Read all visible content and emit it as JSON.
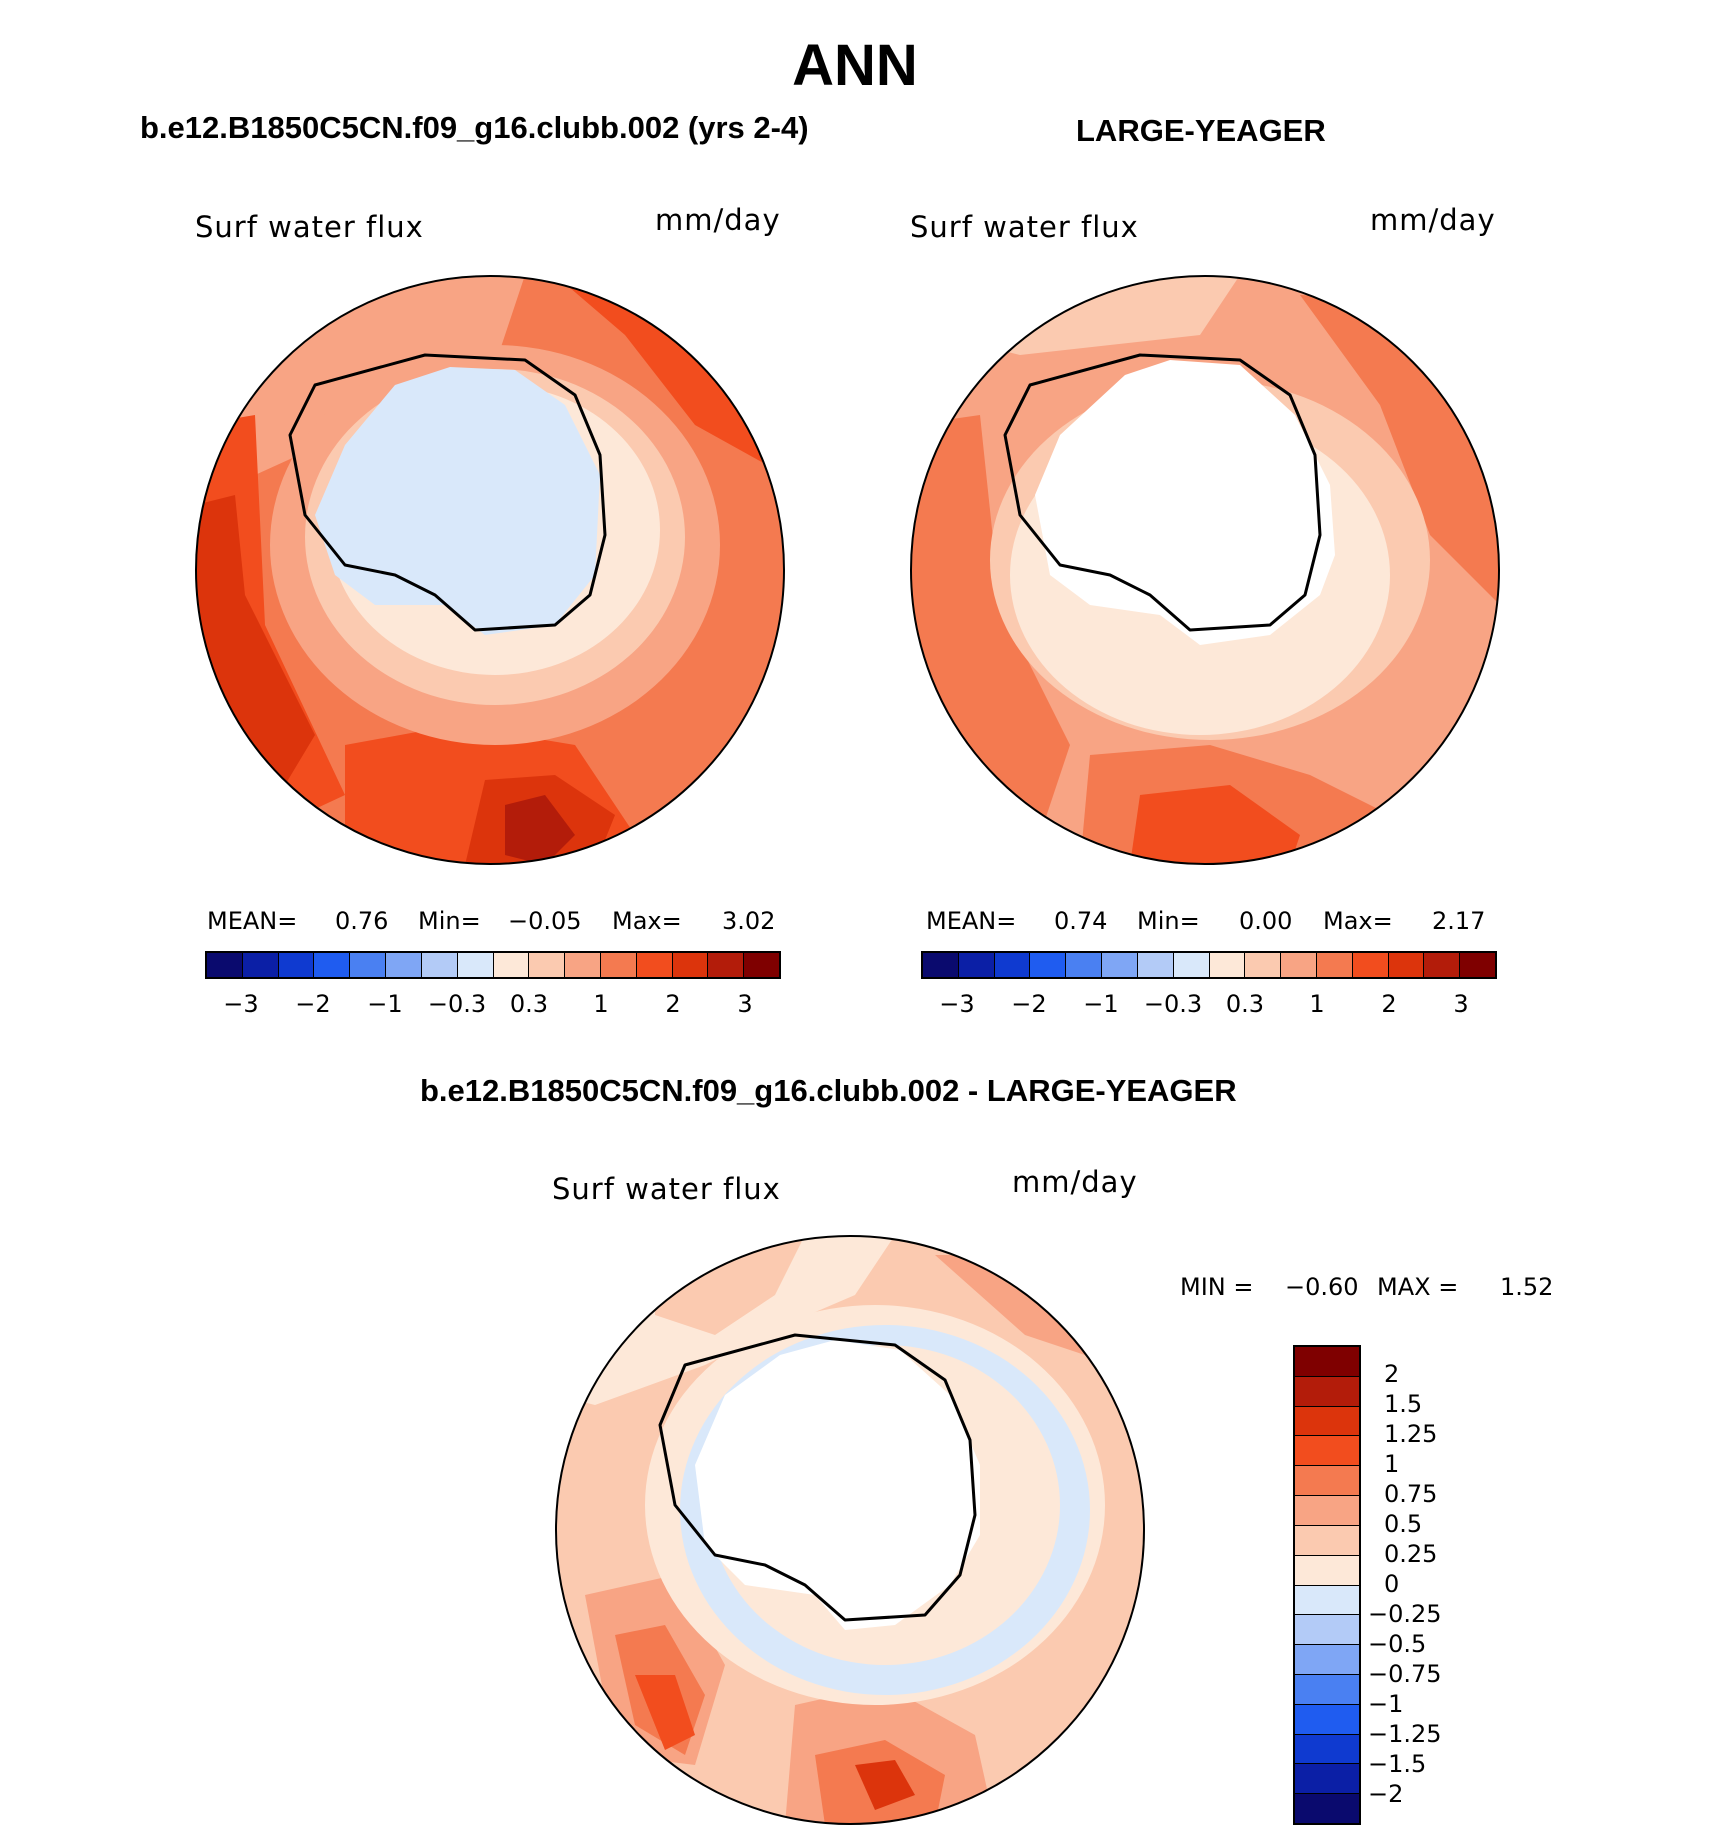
{
  "title": "ANN",
  "panels": [
    {
      "title": "b.e12.B1850C5CN.f09_g16.clubb.002 (yrs 2-4)",
      "variable": "Surf water flux",
      "units": "mm/day",
      "stats": {
        "mean_label": "MEAN=",
        "mean": "0.76",
        "min_label": "Min=",
        "min": "−0.05",
        "max_label": "Max=",
        "max": "3.02"
      }
    },
    {
      "title": "LARGE-YEAGER",
      "variable": "Surf water flux",
      "units": "mm/day",
      "stats": {
        "mean_label": "MEAN=",
        "mean": "0.74",
        "min_label": "Min=",
        "min": "0.00",
        "max_label": "Max=",
        "max": "2.17"
      }
    },
    {
      "title": "b.e12.B1850C5CN.f09_g16.clubb.002 - LARGE-YEAGER",
      "variable": "Surf water flux",
      "units": "mm/day",
      "stats": {
        "min_label": "MIN =",
        "min": "−0.60",
        "max_label": "MAX =",
        "max": "1.52"
      }
    }
  ],
  "colorbars": {
    "absolute": {
      "colors": [
        "#0a0a6e",
        "#0b1fa6",
        "#0f3ad0",
        "#1f5cf0",
        "#4a80f2",
        "#7fa6f5",
        "#b3cbf7",
        "#d9e8fa",
        "#fde8d8",
        "#fbcab0",
        "#f8a484",
        "#f47a50",
        "#f24d1e",
        "#dc340c",
        "#b31c0a",
        "#7f0000"
      ],
      "labels": [
        "−3",
        "−2",
        "−1",
        "−0.3",
        "0.3",
        "1",
        "2",
        "3"
      ]
    },
    "difference": {
      "colors": [
        "#7f0000",
        "#b31c0a",
        "#dc340c",
        "#f24d1e",
        "#f47a50",
        "#f8a484",
        "#fbcab0",
        "#fde8d8",
        "#d9e8fa",
        "#b3cbf7",
        "#7fa6f5",
        "#4a80f2",
        "#1f5cf0",
        "#0f3ad0",
        "#0b1fa6",
        "#0a0a6e"
      ],
      "labels": [
        "2",
        "1.5",
        "1.25",
        "1",
        "0.75",
        "0.5",
        "0.25",
        "0",
        "−0.25",
        "−0.5",
        "−0.75",
        "−1",
        "−1.25",
        "−1.5",
        "−2"
      ]
    }
  },
  "chart_data": [
    {
      "type": "heatmap",
      "projection": "south-polar-stereographic",
      "title": "b.e12.B1850C5CN.f09_g16.clubb.002 (yrs 2-4)",
      "variable": "Surf water flux",
      "units": "mm/day",
      "contour_levels": [
        -3,
        -2.5,
        -2,
        -1.5,
        -1,
        -0.6,
        -0.3,
        0,
        0.3,
        0.6,
        1,
        1.5,
        2,
        2.5,
        3
      ],
      "mean": 0.76,
      "min": -0.05,
      "max": 3.02
    },
    {
      "type": "heatmap",
      "projection": "south-polar-stereographic",
      "title": "LARGE-YEAGER",
      "variable": "Surf water flux",
      "units": "mm/day",
      "contour_levels": [
        -3,
        -2.5,
        -2,
        -1.5,
        -1,
        -0.6,
        -0.3,
        0,
        0.3,
        0.6,
        1,
        1.5,
        2,
        2.5,
        3
      ],
      "mean": 0.74,
      "min": 0.0,
      "max": 2.17
    },
    {
      "type": "heatmap",
      "projection": "south-polar-stereographic",
      "title": "b.e12.B1850C5CN.f09_g16.clubb.002 - LARGE-YEAGER",
      "variable": "Surf water flux",
      "units": "mm/day",
      "contour_levels": [
        -2,
        -1.5,
        -1.25,
        -1,
        -0.75,
        -0.5,
        -0.25,
        0,
        0.25,
        0.5,
        0.75,
        1,
        1.25,
        1.5,
        2
      ],
      "min": -0.6,
      "max": 1.52
    }
  ]
}
